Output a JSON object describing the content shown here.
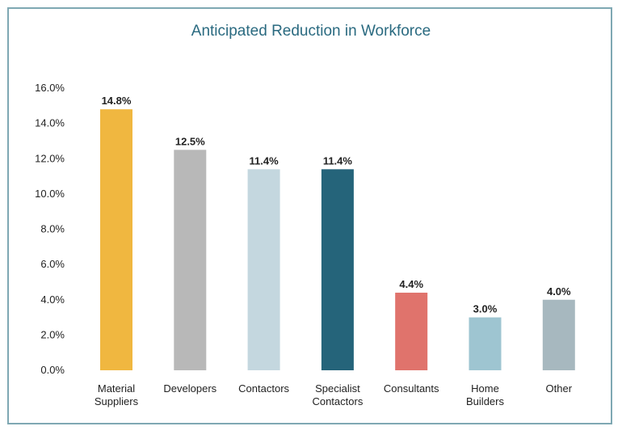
{
  "chart_data": {
    "type": "bar",
    "title": "Anticipated Reduction in Workforce",
    "categories": [
      [
        "Material",
        "Suppliers"
      ],
      [
        "Developers"
      ],
      [
        "Contactors"
      ],
      [
        "Specialist",
        "Contactors"
      ],
      [
        "Consultants"
      ],
      [
        "Home",
        "Builders"
      ],
      [
        "Other"
      ]
    ],
    "values": [
      14.8,
      12.5,
      11.4,
      11.4,
      4.4,
      3.0,
      4.0
    ],
    "data_labels": [
      "14.8%",
      "12.5%",
      "11.4%",
      "11.4%",
      "4.4%",
      "3.0%",
      "4.0%"
    ],
    "colors": [
      "#f0b740",
      "#b8b8b8",
      "#c4d7df",
      "#25647a",
      "#e0736c",
      "#9ec5d1",
      "#a7b8bf"
    ],
    "yticks": [
      "0.0%",
      "2.0%",
      "4.0%",
      "6.0%",
      "8.0%",
      "10.0%",
      "12.0%",
      "14.0%",
      "16.0%"
    ],
    "ylim": [
      0,
      16
    ],
    "grid": false,
    "legend": "none"
  }
}
